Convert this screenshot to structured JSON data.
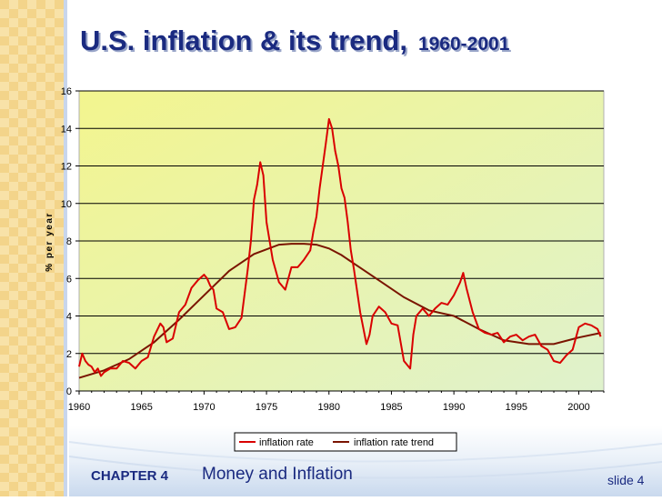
{
  "slide": {
    "title_main": "U.S. inflation & its trend,",
    "title_years": "1960-2001",
    "chapter": "CHAPTER 4",
    "subject": "Money and Inflation",
    "slide_number": "slide 4"
  },
  "colors": {
    "title": "#1a2a80",
    "inflation_line": "#d90000",
    "trend_line": "#7a1400",
    "plot_top_left": "#f3f58e",
    "plot_bottom_right": "#dff2cd"
  },
  "chart_data": {
    "type": "line",
    "title": "",
    "xlabel": "",
    "ylabel": "% per year",
    "xlim": [
      1960,
      2002
    ],
    "ylim": [
      0,
      16
    ],
    "x_ticks": [
      1960,
      1965,
      1970,
      1975,
      1980,
      1985,
      1990,
      1995,
      2000
    ],
    "y_ticks": [
      0,
      2,
      4,
      6,
      8,
      10,
      12,
      14,
      16
    ],
    "grid": "horizontal",
    "legend_position": "bottom-center",
    "series": [
      {
        "name": "inflation rate",
        "x": [
          1960.0,
          1960.25,
          1960.5,
          1960.75,
          1961.0,
          1961.25,
          1961.5,
          1961.75,
          1962.0,
          1962.5,
          1963.0,
          1963.5,
          1964.0,
          1964.5,
          1965.0,
          1965.5,
          1966.0,
          1966.5,
          1966.75,
          1967.0,
          1967.5,
          1968.0,
          1968.5,
          1969.0,
          1969.5,
          1970.0,
          1970.25,
          1970.5,
          1970.75,
          1971.0,
          1971.5,
          1972.0,
          1972.5,
          1973.0,
          1973.5,
          1973.75,
          1974.0,
          1974.25,
          1974.5,
          1974.75,
          1975.0,
          1975.5,
          1976.0,
          1976.5,
          1977.0,
          1977.5,
          1978.0,
          1978.5,
          1978.75,
          1979.0,
          1979.25,
          1979.5,
          1979.75,
          1980.0,
          1980.25,
          1980.5,
          1980.75,
          1981.0,
          1981.25,
          1981.5,
          1981.75,
          1982.0,
          1982.5,
          1983.0,
          1983.25,
          1983.5,
          1984.0,
          1984.5,
          1985.0,
          1985.5,
          1986.0,
          1986.25,
          1986.5,
          1986.75,
          1987.0,
          1987.5,
          1988.0,
          1988.5,
          1989.0,
          1989.5,
          1990.0,
          1990.5,
          1990.75,
          1991.0,
          1991.5,
          1992.0,
          1992.5,
          1993.0,
          1993.5,
          1994.0,
          1994.5,
          1995.0,
          1995.5,
          1996.0,
          1996.5,
          1997.0,
          1997.5,
          1998.0,
          1998.5,
          1999.0,
          1999.5,
          2000.0,
          2000.5,
          2001.0,
          2001.5,
          2001.75
        ],
        "y": [
          1.3,
          2.0,
          1.6,
          1.4,
          1.3,
          1.0,
          1.2,
          0.8,
          1.0,
          1.2,
          1.2,
          1.6,
          1.5,
          1.2,
          1.6,
          1.8,
          2.9,
          3.6,
          3.4,
          2.6,
          2.8,
          4.2,
          4.6,
          5.5,
          5.9,
          6.2,
          6.0,
          5.6,
          5.4,
          4.4,
          4.2,
          3.3,
          3.4,
          3.9,
          6.5,
          8.0,
          10.2,
          11.0,
          12.2,
          11.5,
          9.0,
          7.0,
          5.8,
          5.4,
          6.6,
          6.6,
          7.0,
          7.5,
          8.5,
          9.3,
          10.8,
          12.0,
          13.2,
          14.5,
          14.0,
          12.8,
          12.0,
          10.8,
          10.3,
          9.0,
          7.5,
          6.5,
          4.2,
          2.5,
          3.0,
          4.0,
          4.5,
          4.2,
          3.6,
          3.5,
          1.6,
          1.4,
          1.2,
          3.0,
          4.0,
          4.4,
          4.0,
          4.4,
          4.7,
          4.6,
          5.1,
          5.8,
          6.3,
          5.5,
          4.2,
          3.3,
          3.1,
          3.0,
          3.1,
          2.6,
          2.9,
          3.0,
          2.7,
          2.9,
          3.0,
          2.4,
          2.2,
          1.6,
          1.5,
          1.9,
          2.2,
          3.4,
          3.6,
          3.5,
          3.3,
          2.9
        ]
      },
      {
        "name": "inflation rate trend",
        "x": [
          1960,
          1962,
          1964,
          1966,
          1968,
          1970,
          1972,
          1974,
          1976,
          1977,
          1978,
          1979,
          1980,
          1981,
          1982,
          1984,
          1986,
          1988,
          1990,
          1992,
          1994,
          1996,
          1998,
          2000,
          2001.75
        ],
        "y": [
          0.7,
          1.1,
          1.7,
          2.6,
          3.8,
          5.1,
          6.4,
          7.3,
          7.8,
          7.85,
          7.85,
          7.8,
          7.6,
          7.25,
          6.8,
          5.9,
          5.0,
          4.3,
          4.0,
          3.3,
          2.7,
          2.5,
          2.5,
          2.85,
          3.1
        ]
      }
    ]
  }
}
